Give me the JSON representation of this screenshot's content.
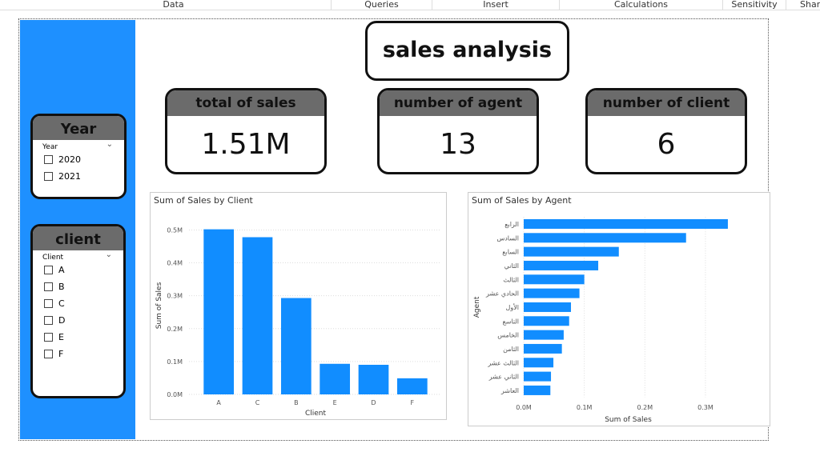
{
  "menu": [
    "Data",
    "Queries",
    "Insert",
    "Calculations",
    "Sensitivity",
    "Share"
  ],
  "title": "sales analysis",
  "cards": [
    {
      "label": "total of sales",
      "value": "1.51M"
    },
    {
      "label": "number of agent",
      "value": 13
    },
    {
      "label": "number of client",
      "value": 6
    }
  ],
  "slicers": [
    {
      "title": "Year",
      "field": "Year",
      "options": [
        "2020",
        "2021"
      ]
    },
    {
      "title": "client",
      "field": "Client",
      "options": [
        "A",
        "B",
        "C",
        "D",
        "E",
        "F"
      ]
    }
  ],
  "chart_data": [
    {
      "type": "bar",
      "title": "Sum of Sales by Client",
      "xlabel": "Client",
      "ylabel": "Sum of Sales",
      "categories": [
        "A",
        "C",
        "B",
        "E",
        "D",
        "F"
      ],
      "values": [
        502000,
        478000,
        293000,
        93000,
        90000,
        49000
      ],
      "color": "#118dff",
      "ylim": [
        0,
        540000
      ],
      "yticks": [
        {
          "value": 0,
          "label": "0.0M"
        },
        {
          "value": 100000,
          "label": "0.1M"
        },
        {
          "value": 200000,
          "label": "0.2M"
        },
        {
          "value": 300000,
          "label": "0.3M"
        },
        {
          "value": 400000,
          "label": "0.4M"
        },
        {
          "value": 500000,
          "label": "0.5M"
        }
      ],
      "grid": true
    },
    {
      "type": "hbar",
      "title": "Sum of Sales by Agent",
      "xlabel": "Sum of Sales",
      "ylabel": "Agent",
      "categories": [
        "الرابع",
        "السادس",
        "السابع",
        "الثاني",
        "الثالث",
        "الحادي عشر",
        "الأول",
        "التاسع",
        "الخامس",
        "الثامن",
        "الثالث عشر",
        "الثاني عشر",
        "العاشر"
      ],
      "values": [
        337000,
        268000,
        157000,
        123000,
        100000,
        92000,
        78000,
        75000,
        66000,
        63000,
        49000,
        45000,
        44000
      ],
      "color": "#118dff",
      "xlim": [
        0,
        345000
      ],
      "xticks": [
        {
          "value": 0,
          "label": "0.0M"
        },
        {
          "value": 100000,
          "label": "0.1M"
        },
        {
          "value": 200000,
          "label": "0.2M"
        },
        {
          "value": 300000,
          "label": "0.3M"
        }
      ],
      "grid": true
    }
  ]
}
